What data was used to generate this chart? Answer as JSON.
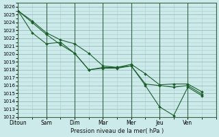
{
  "xlabel": "Pression niveau de la mer( hPa )",
  "background_color": "#cceaea",
  "grid_color": "#aacccc",
  "grid_color_major": "#99bbbb",
  "line_color": "#1a5e2a",
  "day_line_color": "#336644",
  "ylim": [
    1012,
    1026.5
  ],
  "ytick_min": 1012,
  "ytick_max": 1026,
  "xtick_labels": [
    "Ditoun",
    "Sam",
    "Dim",
    "Mar",
    "Mer",
    "Jeu",
    "Ven"
  ],
  "num_days": 7,
  "series": [
    {
      "x": [
        0.0,
        0.5,
        1.0,
        1.5,
        2.0,
        2.5,
        3.0,
        3.5,
        4.0,
        4.5,
        5.0,
        5.5,
        6.0,
        6.5
      ],
      "y": [
        1025.5,
        1024.2,
        1022.7,
        1021.8,
        1021.3,
        1020.1,
        1018.5,
        1018.3,
        1018.7,
        1017.5,
        1016.1,
        1016.2,
        1016.2,
        1015.2
      ]
    },
    {
      "x": [
        0.0,
        0.5,
        1.0,
        1.5,
        2.0,
        2.5,
        3.0,
        3.5,
        4.0,
        4.5,
        5.0,
        5.5,
        6.0,
        6.5
      ],
      "y": [
        1025.5,
        1022.7,
        1021.3,
        1021.5,
        1020.1,
        1018.0,
        1018.2,
        1018.2,
        1018.5,
        1016.0,
        1013.3,
        1012.2,
        1015.8,
        1014.7
      ]
    },
    {
      "x": [
        0.0,
        0.5,
        1.0,
        1.5,
        2.0,
        2.5,
        3.0,
        3.5,
        4.0,
        4.5,
        5.0,
        5.5,
        6.0,
        6.5
      ],
      "y": [
        1025.5,
        1024.0,
        1022.5,
        1021.2,
        1020.1,
        1018.0,
        1018.3,
        1018.3,
        1018.5,
        1016.2,
        1016.0,
        1015.8,
        1016.0,
        1014.9
      ]
    }
  ]
}
